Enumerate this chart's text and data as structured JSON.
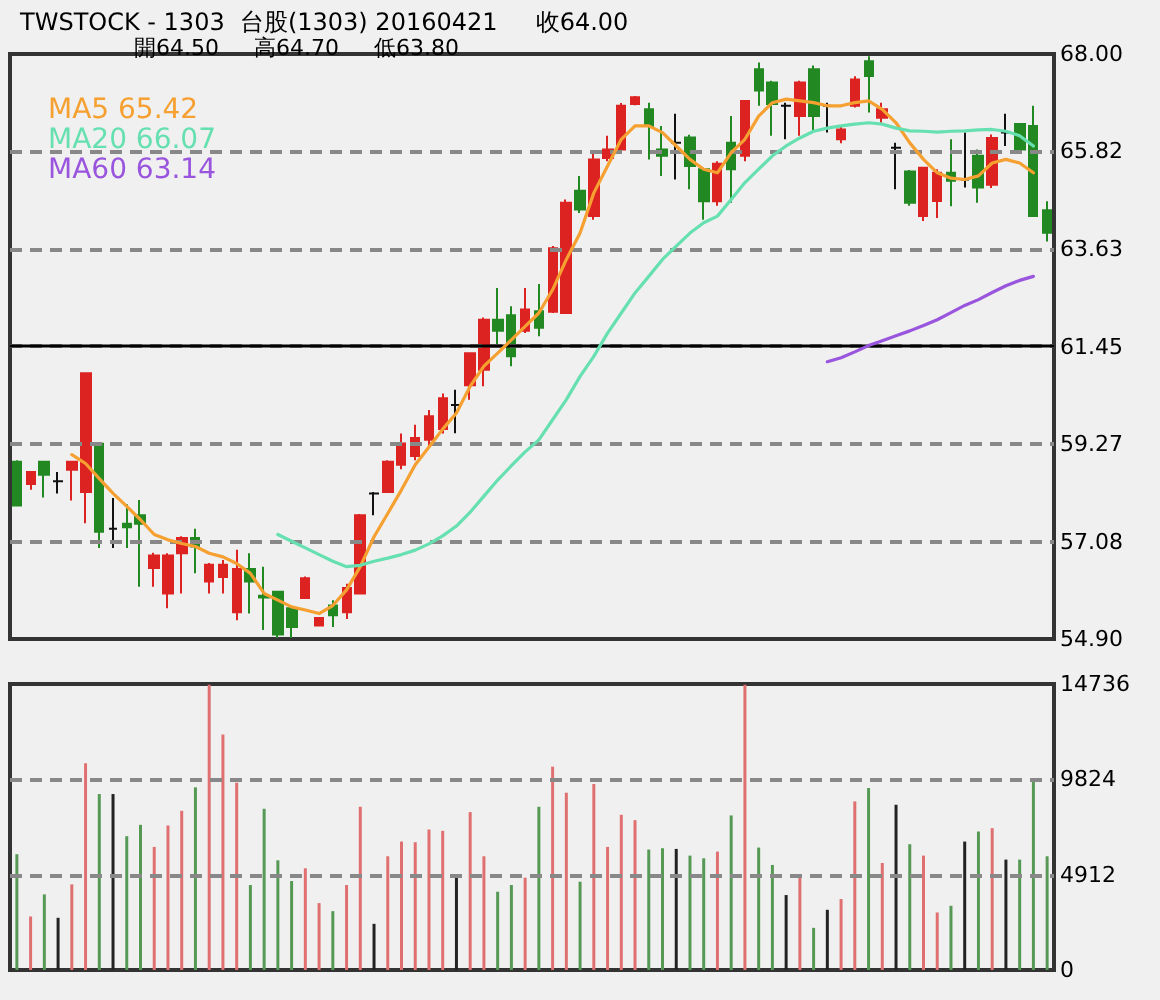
{
  "chart_data": [
    {
      "type": "candlestick",
      "title": "TWSTOCK - 1303  台股(1303) 20160421     收64.00",
      "subtitle": "開64.50     高64.70     低63.80",
      "categories": [
        null,
        null,
        null,
        null,
        null,
        null,
        null,
        null,
        null,
        null,
        null,
        null,
        null,
        null,
        null,
        null,
        null,
        null,
        null,
        null,
        null,
        null,
        null,
        null,
        null,
        null,
        null,
        null,
        null,
        null,
        null,
        null,
        null,
        null,
        null,
        null,
        null,
        null,
        null,
        null,
        null,
        null,
        null,
        null,
        null,
        null,
        null,
        null,
        null,
        null,
        null,
        null,
        null,
        null,
        null,
        null,
        null,
        null,
        null,
        null,
        null,
        null,
        null,
        null,
        null,
        null,
        null,
        null,
        null,
        null,
        null,
        null,
        null,
        null,
        null,
        null
      ],
      "ohlc": [
        [
          58.87,
          58.9,
          57.89,
          57.89
        ],
        [
          58.37,
          58.64,
          58.24,
          58.64
        ],
        [
          58.87,
          58.87,
          58.07,
          58.58
        ],
        [
          58.43,
          58.64,
          58.16,
          58.43
        ],
        [
          58.69,
          58.87,
          58.0,
          58.87
        ],
        [
          58.19,
          60.85,
          57.49,
          60.85
        ],
        [
          59.27,
          59.27,
          56.94,
          57.3
        ],
        [
          57.37,
          58.06,
          56.94,
          57.37
        ],
        [
          57.48,
          57.92,
          56.94,
          57.4
        ],
        [
          57.67,
          58.01,
          56.07,
          57.48
        ],
        [
          56.49,
          56.83,
          56.07,
          56.77
        ],
        [
          55.92,
          56.82,
          55.59,
          56.77
        ],
        [
          56.82,
          57.2,
          55.92,
          57.16
        ],
        [
          57.16,
          57.37,
          56.37,
          56.97
        ],
        [
          56.19,
          56.6,
          55.92,
          56.56
        ],
        [
          56.29,
          56.67,
          55.92,
          56.56
        ],
        [
          55.5,
          56.9,
          55.32,
          56.47
        ],
        [
          56.47,
          56.82,
          55.47,
          56.19
        ],
        [
          55.87,
          56.52,
          55.1,
          55.83
        ],
        [
          55.96,
          55.96,
          54.92,
          55.0
        ],
        [
          55.59,
          55.59,
          54.92,
          55.17
        ],
        [
          55.82,
          56.3,
          55.82,
          56.26
        ],
        [
          55.2,
          55.37,
          55.2,
          55.37
        ],
        [
          55.65,
          55.77,
          55.17,
          55.43
        ],
        [
          55.5,
          56.14,
          55.35,
          56.04
        ],
        [
          55.92,
          57.7,
          55.9,
          57.67
        ],
        [
          58.16,
          58.19,
          57.67,
          58.16
        ],
        [
          58.19,
          58.9,
          58.19,
          58.87
        ],
        [
          58.8,
          59.5,
          58.7,
          59.28
        ],
        [
          59.0,
          59.7,
          58.9,
          59.4
        ],
        [
          59.36,
          60.03,
          59.2,
          59.89
        ],
        [
          59.6,
          60.4,
          59.5,
          60.29
        ],
        [
          60.14,
          60.48,
          59.51,
          60.14
        ],
        [
          60.58,
          61.32,
          60.26,
          61.3
        ],
        [
          60.93,
          62.1,
          60.56,
          62.05
        ],
        [
          62.05,
          62.76,
          61.45,
          61.8
        ],
        [
          62.15,
          62.35,
          61.01,
          61.23
        ],
        [
          61.8,
          62.76,
          61.75,
          62.28
        ],
        [
          62.24,
          62.85,
          61.68,
          61.87
        ],
        [
          62.23,
          63.7,
          62.2,
          63.65
        ],
        [
          62.2,
          64.74,
          62.2,
          64.67
        ],
        [
          64.94,
          65.27,
          64.44,
          64.52
        ],
        [
          64.37,
          65.76,
          64.29,
          65.64
        ],
        [
          65.67,
          66.17,
          65.6,
          65.86
        ],
        [
          65.86,
          66.9,
          65.8,
          66.84
        ],
        [
          66.88,
          67.06,
          66.85,
          67.03
        ],
        [
          66.76,
          66.91,
          65.64,
          66.39
        ],
        [
          65.86,
          66.39,
          65.27,
          65.72
        ],
        [
          66.01,
          66.66,
          65.19,
          66.01
        ],
        [
          66.13,
          66.19,
          64.97,
          65.49
        ],
        [
          65.42,
          65.45,
          64.29,
          64.7
        ],
        [
          64.7,
          65.6,
          64.6,
          65.54
        ],
        [
          66.01,
          66.61,
          64.67,
          65.42
        ],
        [
          65.72,
          66.95,
          65.6,
          66.95
        ],
        [
          67.66,
          67.81,
          66.84,
          67.18
        ],
        [
          67.36,
          67.4,
          66.17,
          66.88
        ],
        [
          66.84,
          66.91,
          66.09,
          66.84
        ],
        [
          66.61,
          67.4,
          66.17,
          67.36
        ],
        [
          67.66,
          67.74,
          66.28,
          66.61
        ],
        [
          66.84,
          66.91,
          66.24,
          66.84
        ],
        [
          66.09,
          66.4,
          66.0,
          66.31
        ],
        [
          66.84,
          67.5,
          66.8,
          67.43
        ],
        [
          67.84,
          67.95,
          66.69,
          67.51
        ],
        [
          66.57,
          66.91,
          66.46,
          66.76
        ],
        [
          65.9,
          66.01,
          64.97,
          65.9
        ],
        [
          65.37,
          65.4,
          64.6,
          64.67
        ],
        [
          64.37,
          65.45,
          64.26,
          65.45
        ],
        [
          64.71,
          65.42,
          64.33,
          65.34
        ],
        [
          65.34,
          66.09,
          64.59,
          65.16
        ],
        [
          65.19,
          66.24,
          65.01,
          65.19
        ],
        [
          65.72,
          65.86,
          64.67,
          65.01
        ],
        [
          65.07,
          66.2,
          65.0,
          66.12
        ],
        [
          66.24,
          66.66,
          65.94,
          66.24
        ],
        [
          66.43,
          66.45,
          65.79,
          65.86
        ],
        [
          66.39,
          66.84,
          64.37,
          64.37
        ],
        [
          64.5,
          64.7,
          63.8,
          64.0
        ]
      ],
      "colors": [
        "#228822",
        "#dd2222",
        "#228822",
        "#111111",
        "#dd2222",
        "#dd2222",
        "#228822",
        "#111111",
        "#228822",
        "#228822",
        "#dd2222",
        "#dd2222",
        "#dd2222",
        "#228822",
        "#dd2222",
        "#dd2222",
        "#dd2222",
        "#228822",
        "#228822",
        "#228822",
        "#228822",
        "#dd2222",
        "#dd2222",
        "#228822",
        "#dd2222",
        "#dd2222",
        "#111111",
        "#dd2222",
        "#dd2222",
        "#dd2222",
        "#dd2222",
        "#dd2222",
        "#111111",
        "#dd2222",
        "#dd2222",
        "#228822",
        "#228822",
        "#dd2222",
        "#228822",
        "#dd2222",
        "#dd2222",
        "#228822",
        "#dd2222",
        "#dd2222",
        "#dd2222",
        "#dd2222",
        "#228822",
        "#228822",
        "#111111",
        "#228822",
        "#228822",
        "#dd2222",
        "#228822",
        "#dd2222",
        "#228822",
        "#228822",
        "#111111",
        "#dd2222",
        "#228822",
        "#111111",
        "#dd2222",
        "#dd2222",
        "#228822",
        "#dd2222",
        "#111111",
        "#228822",
        "#dd2222",
        "#dd2222",
        "#228822",
        "#111111",
        "#228822",
        "#dd2222",
        "#111111",
        "#228822",
        "#228822",
        "#228822"
      ],
      "series": [
        {
          "name": "MA5 65.42",
          "type": "line",
          "color": "#f5a030",
          "values": [
            null,
            null,
            null,
            null,
            59.03,
            58.83,
            58.49,
            58.16,
            57.87,
            57.57,
            57.24,
            57.12,
            57.04,
            56.97,
            56.82,
            56.74,
            56.59,
            56.37,
            55.92,
            55.77,
            55.62,
            55.55,
            55.47,
            55.65,
            56.0,
            56.52,
            57.19,
            57.71,
            58.24,
            58.8,
            59.2,
            59.6,
            59.96,
            60.56,
            61.01,
            61.3,
            61.6,
            61.9,
            62.2,
            62.72,
            63.4,
            63.99,
            64.89,
            65.49,
            66.09,
            66.39,
            66.39,
            66.24,
            65.94,
            65.64,
            65.42,
            65.34,
            65.79,
            66.09,
            66.61,
            66.91,
            66.99,
            66.95,
            66.91,
            66.84,
            66.84,
            66.91,
            66.95,
            66.76,
            66.46,
            66.01,
            65.64,
            65.34,
            65.22,
            65.19,
            65.27,
            65.56,
            65.64,
            65.56,
            65.34,
            null
          ]
        },
        {
          "name": "MA20 66.07",
          "type": "line",
          "color": "#66e0b0",
          "values": [
            null,
            null,
            null,
            null,
            null,
            null,
            null,
            null,
            null,
            null,
            null,
            null,
            null,
            null,
            null,
            null,
            null,
            null,
            null,
            57.24,
            57.09,
            56.94,
            56.79,
            56.64,
            56.52,
            56.55,
            56.64,
            56.71,
            56.79,
            56.89,
            57.03,
            57.21,
            57.43,
            57.74,
            58.1,
            58.46,
            58.78,
            59.09,
            59.36,
            59.81,
            60.26,
            60.78,
            61.23,
            61.75,
            62.2,
            62.65,
            63.02,
            63.4,
            63.7,
            63.99,
            64.22,
            64.37,
            64.74,
            65.12,
            65.42,
            65.72,
            65.94,
            66.12,
            66.27,
            66.34,
            66.39,
            66.43,
            66.46,
            66.43,
            66.34,
            66.28,
            66.27,
            66.25,
            66.27,
            66.28,
            66.3,
            66.31,
            66.27,
            66.17,
            65.94,
            null
          ]
        },
        {
          "name": "MA60 63.14",
          "type": "line",
          "color": "#9955dd",
          "values": [
            null,
            null,
            null,
            null,
            null,
            null,
            null,
            null,
            null,
            null,
            null,
            null,
            null,
            null,
            null,
            null,
            null,
            null,
            null,
            null,
            null,
            null,
            null,
            null,
            null,
            null,
            null,
            null,
            null,
            null,
            null,
            null,
            null,
            null,
            null,
            null,
            null,
            null,
            null,
            null,
            null,
            null,
            null,
            null,
            null,
            null,
            null,
            null,
            null,
            null,
            null,
            null,
            null,
            null,
            null,
            null,
            null,
            null,
            null,
            61.11,
            61.2,
            61.33,
            61.47,
            61.58,
            61.69,
            61.8,
            61.92,
            62.05,
            62.21,
            62.37,
            62.5,
            62.66,
            62.81,
            62.93,
            63.02,
            null
          ]
        }
      ],
      "ylim": [
        54.9,
        68.0
      ],
      "yticks": [
        {
          "value": 54.9,
          "label": "54.90"
        },
        57.08,
        59.27,
        61.45,
        63.63,
        65.82,
        {
          "value": 68.0,
          "label": "68.00"
        }
      ],
      "ref_lines": [
        {
          "axis": "y",
          "value": 61.45,
          "color": "#000000",
          "line_style": "solid"
        }
      ],
      "grid": "y",
      "legend": "top left",
      "line_style": "solid"
    },
    {
      "type": "bar",
      "categories": [
        null,
        null,
        null,
        null,
        null,
        null,
        null,
        null,
        null,
        null,
        null,
        null,
        null,
        null,
        null,
        null,
        null,
        null,
        null,
        null,
        null,
        null,
        null,
        null,
        null,
        null,
        null,
        null,
        null,
        null,
        null,
        null,
        null,
        null,
        null,
        null,
        null,
        null,
        null,
        null,
        null,
        null,
        null,
        null,
        null,
        null,
        null,
        null,
        null,
        null,
        null,
        null,
        null,
        null,
        null,
        null,
        null,
        null,
        null,
        null,
        null,
        null,
        null,
        null,
        null,
        null,
        null,
        null,
        null,
        null,
        null,
        null,
        null,
        null,
        null,
        null
      ],
      "values": [
        5963,
        2758,
        3895,
        2689,
        4412,
        10651,
        9066,
        9066,
        6894,
        7480,
        6342,
        7446,
        8204,
        9410,
        14700,
        12133,
        9652,
        4378,
        8307,
        5653,
        4585,
        5239,
        3447,
        3033,
        4378,
        8411,
        2378,
        5860,
        6618,
        6584,
        7239,
        7170,
        4826,
        8135,
        5860,
        4033,
        4378,
        4757,
        8411,
        10479,
        9135,
        4550,
        9583,
        6342,
        7997,
        7721,
        6205,
        6274,
        6239,
        5894,
        5756,
        6101,
        7963,
        14700,
        6308,
        5412,
        3861,
        4826,
        2172,
        3102,
        3654,
        8686,
        9376,
        5515,
        8514,
        6480,
        5894,
        2964,
        3309,
        6618,
        7135,
        7308,
        5688,
        5688,
        9824,
        5860
      ],
      "colors": [
        "#559955",
        "#e07070",
        "#559955",
        "#222222",
        "#e07070",
        "#e07070",
        "#559955",
        "#222222",
        "#559955",
        "#559955",
        "#e07070",
        "#e07070",
        "#e07070",
        "#559955",
        "#e07070",
        "#e07070",
        "#e07070",
        "#559955",
        "#559955",
        "#559955",
        "#559955",
        "#e07070",
        "#e07070",
        "#559955",
        "#e07070",
        "#e07070",
        "#222222",
        "#e07070",
        "#e07070",
        "#e07070",
        "#e07070",
        "#e07070",
        "#222222",
        "#e07070",
        "#e07070",
        "#559955",
        "#559955",
        "#e07070",
        "#559955",
        "#e07070",
        "#e07070",
        "#559955",
        "#e07070",
        "#e07070",
        "#e07070",
        "#e07070",
        "#559955",
        "#559955",
        "#222222",
        "#559955",
        "#559955",
        "#e07070",
        "#559955",
        "#e07070",
        "#559955",
        "#559955",
        "#222222",
        "#e07070",
        "#559955",
        "#222222",
        "#e07070",
        "#e07070",
        "#559955",
        "#e07070",
        "#222222",
        "#559955",
        "#e07070",
        "#e07070",
        "#559955",
        "#222222",
        "#559955",
        "#e07070",
        "#222222",
        "#559955",
        "#559955",
        "#559955"
      ],
      "ylim": [
        0,
        14736
      ],
      "yticks": [
        0,
        4912,
        9824,
        14736
      ],
      "grid": "y"
    }
  ]
}
